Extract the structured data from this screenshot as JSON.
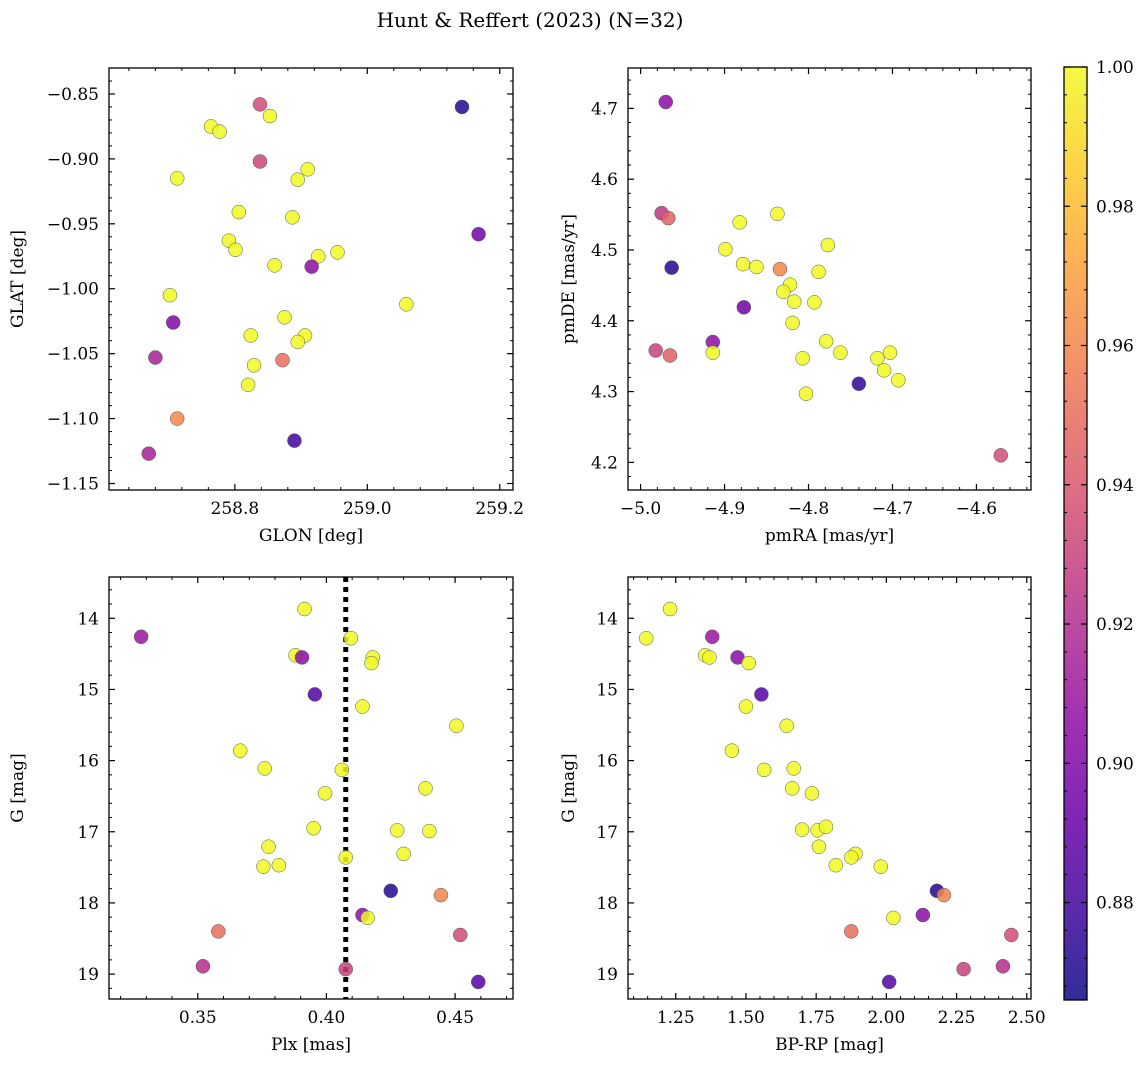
{
  "figure": {
    "title": "Hunt & Reffert (2023) (N=32)"
  },
  "colorbar": {
    "range": [
      0.866,
      1.0
    ],
    "ticks": [
      0.88,
      0.9,
      0.92,
      0.94,
      0.96,
      0.98,
      1.0
    ],
    "tick_labels": [
      "0.88",
      "0.90",
      "0.92",
      "0.94",
      "0.96",
      "0.98",
      "1.00"
    ],
    "colormap": "plasma"
  },
  "chart_data": [
    {
      "type": "scatter",
      "xlabel": "GLON [deg]",
      "ylabel": "GLAT [deg]",
      "xlim": [
        258.61,
        259.22
      ],
      "ylim": [
        -1.155,
        -0.83
      ],
      "yinverted": false,
      "xticks": [
        258.8,
        259.0,
        259.2
      ],
      "xtick_labels": [
        "258.8",
        "259.0",
        "259.2"
      ],
      "yticks": [
        -1.15,
        -1.1,
        -1.05,
        -1.0,
        -0.95,
        -0.9,
        -0.85
      ],
      "ytick_labels": [
        "−1.15",
        "−1.10",
        "−1.05",
        "−1.00",
        "−0.95",
        "−0.90",
        "−0.85"
      ],
      "points": [
        {
          "x": 258.838,
          "y": -0.858,
          "c": 0.935
        },
        {
          "x": 259.143,
          "y": -0.86,
          "c": 0.872
        },
        {
          "x": 258.853,
          "y": -0.867,
          "c": 1.0
        },
        {
          "x": 258.764,
          "y": -0.875,
          "c": 1.0
        },
        {
          "x": 258.777,
          "y": -0.879,
          "c": 1.0
        },
        {
          "x": 258.838,
          "y": -0.902,
          "c": 0.932
        },
        {
          "x": 258.91,
          "y": -0.908,
          "c": 1.0
        },
        {
          "x": 258.713,
          "y": -0.915,
          "c": 1.0
        },
        {
          "x": 258.895,
          "y": -0.916,
          "c": 1.0
        },
        {
          "x": 258.806,
          "y": -0.941,
          "c": 1.0
        },
        {
          "x": 258.887,
          "y": -0.945,
          "c": 1.0
        },
        {
          "x": 259.168,
          "y": -0.958,
          "c": 0.895
        },
        {
          "x": 258.791,
          "y": -0.963,
          "c": 1.0
        },
        {
          "x": 258.801,
          "y": -0.97,
          "c": 1.0
        },
        {
          "x": 258.955,
          "y": -0.972,
          "c": 1.0
        },
        {
          "x": 258.926,
          "y": -0.975,
          "c": 1.0
        },
        {
          "x": 258.86,
          "y": -0.982,
          "c": 1.0
        },
        {
          "x": 258.916,
          "y": -0.983,
          "c": 0.905
        },
        {
          "x": 258.702,
          "y": -1.005,
          "c": 1.0
        },
        {
          "x": 259.059,
          "y": -1.012,
          "c": 1.0
        },
        {
          "x": 258.875,
          "y": -1.022,
          "c": 1.0
        },
        {
          "x": 258.707,
          "y": -1.026,
          "c": 0.9
        },
        {
          "x": 258.824,
          "y": -1.036,
          "c": 1.0
        },
        {
          "x": 258.906,
          "y": -1.036,
          "c": 1.0
        },
        {
          "x": 258.895,
          "y": -1.041,
          "c": 1.0
        },
        {
          "x": 258.68,
          "y": -1.053,
          "c": 0.915
        },
        {
          "x": 258.872,
          "y": -1.055,
          "c": 0.95
        },
        {
          "x": 258.829,
          "y": -1.059,
          "c": 1.0
        },
        {
          "x": 258.82,
          "y": -1.074,
          "c": 1.0
        },
        {
          "x": 258.713,
          "y": -1.1,
          "c": 0.96
        },
        {
          "x": 258.89,
          "y": -1.117,
          "c": 0.88
        },
        {
          "x": 258.67,
          "y": -1.127,
          "c": 0.915
        }
      ]
    },
    {
      "type": "scatter",
      "xlabel": "pmRA [mas/yr]",
      "ylabel": "pmDE [mas/yr]",
      "xlim": [
        -5.015,
        -4.535
      ],
      "ylim": [
        4.161,
        4.757
      ],
      "yinverted": false,
      "xticks": [
        -5.0,
        -4.9,
        -4.8,
        -4.7,
        -4.6
      ],
      "xtick_labels": [
        "−5.0",
        "−4.9",
        "−4.8",
        "−4.7",
        "−4.6"
      ],
      "yticks": [
        4.2,
        4.3,
        4.4,
        4.5,
        4.6,
        4.7
      ],
      "ytick_labels": [
        "4.2",
        "4.3",
        "4.4",
        "4.5",
        "4.6",
        "4.7"
      ],
      "points": [
        {
          "x": -4.97,
          "y": 4.709,
          "c": 0.905
        },
        {
          "x": -4.975,
          "y": 4.552,
          "c": 0.925
        },
        {
          "x": -4.967,
          "y": 4.545,
          "c": 0.945
        },
        {
          "x": -4.837,
          "y": 4.551,
          "c": 1.0
        },
        {
          "x": -4.882,
          "y": 4.539,
          "c": 1.0
        },
        {
          "x": -4.777,
          "y": 4.507,
          "c": 1.0
        },
        {
          "x": -4.899,
          "y": 4.501,
          "c": 1.0
        },
        {
          "x": -4.878,
          "y": 4.48,
          "c": 1.0
        },
        {
          "x": -4.862,
          "y": 4.476,
          "c": 1.0
        },
        {
          "x": -4.963,
          "y": 4.475,
          "c": 0.872
        },
        {
          "x": -4.834,
          "y": 4.473,
          "c": 0.96
        },
        {
          "x": -4.788,
          "y": 4.469,
          "c": 1.0
        },
        {
          "x": -4.822,
          "y": 4.451,
          "c": 1.0
        },
        {
          "x": -4.83,
          "y": 4.441,
          "c": 1.0
        },
        {
          "x": -4.817,
          "y": 4.427,
          "c": 1.0
        },
        {
          "x": -4.793,
          "y": 4.426,
          "c": 1.0
        },
        {
          "x": -4.877,
          "y": 4.419,
          "c": 0.895
        },
        {
          "x": -4.819,
          "y": 4.397,
          "c": 1.0
        },
        {
          "x": -4.779,
          "y": 4.371,
          "c": 1.0
        },
        {
          "x": -4.914,
          "y": 4.37,
          "c": 0.905
        },
        {
          "x": -4.982,
          "y": 4.358,
          "c": 0.93
        },
        {
          "x": -4.762,
          "y": 4.355,
          "c": 1.0
        },
        {
          "x": -4.703,
          "y": 4.355,
          "c": 1.0
        },
        {
          "x": -4.914,
          "y": 4.355,
          "c": 1.0
        },
        {
          "x": -4.965,
          "y": 4.351,
          "c": 0.945
        },
        {
          "x": -4.807,
          "y": 4.347,
          "c": 1.0
        },
        {
          "x": -4.718,
          "y": 4.347,
          "c": 1.0
        },
        {
          "x": -4.71,
          "y": 4.33,
          "c": 1.0
        },
        {
          "x": -4.693,
          "y": 4.316,
          "c": 1.0
        },
        {
          "x": -4.74,
          "y": 4.311,
          "c": 0.875
        },
        {
          "x": -4.803,
          "y": 4.297,
          "c": 1.0
        },
        {
          "x": -4.571,
          "y": 4.21,
          "c": 0.935
        }
      ]
    },
    {
      "type": "scatter",
      "xlabel": "Plx [mas]",
      "ylabel": "G [mag]",
      "xlim": [
        0.3155,
        0.4725
      ],
      "ylim": [
        19.35,
        13.42
      ],
      "yinverted": true,
      "xticks": [
        0.35,
        0.4,
        0.45
      ],
      "xtick_labels": [
        "0.35",
        "0.40",
        "0.45"
      ],
      "yticks": [
        14,
        15,
        16,
        17,
        18,
        19
      ],
      "ytick_labels": [
        "14",
        "15",
        "16",
        "17",
        "18",
        "19"
      ],
      "vline": {
        "x": 0.4075,
        "style": "dotted"
      },
      "points": [
        {
          "x": 0.3915,
          "y": 13.87,
          "c": 1.0
        },
        {
          "x": 0.328,
          "y": 14.26,
          "c": 0.91
        },
        {
          "x": 0.4095,
          "y": 14.28,
          "c": 1.0
        },
        {
          "x": 0.388,
          "y": 14.52,
          "c": 1.0
        },
        {
          "x": 0.3905,
          "y": 14.55,
          "c": 0.905
        },
        {
          "x": 0.418,
          "y": 14.55,
          "c": 1.0
        },
        {
          "x": 0.4175,
          "y": 14.63,
          "c": 1.0
        },
        {
          "x": 0.3955,
          "y": 15.07,
          "c": 0.885
        },
        {
          "x": 0.414,
          "y": 15.24,
          "c": 1.0
        },
        {
          "x": 0.4505,
          "y": 15.51,
          "c": 1.0
        },
        {
          "x": 0.3665,
          "y": 15.86,
          "c": 1.0
        },
        {
          "x": 0.376,
          "y": 16.11,
          "c": 1.0
        },
        {
          "x": 0.406,
          "y": 16.13,
          "c": 1.0
        },
        {
          "x": 0.3995,
          "y": 16.46,
          "c": 1.0
        },
        {
          "x": 0.4385,
          "y": 16.39,
          "c": 1.0
        },
        {
          "x": 0.395,
          "y": 16.95,
          "c": 1.0
        },
        {
          "x": 0.4275,
          "y": 16.98,
          "c": 1.0
        },
        {
          "x": 0.44,
          "y": 16.99,
          "c": 1.0
        },
        {
          "x": 0.3775,
          "y": 17.21,
          "c": 1.0
        },
        {
          "x": 0.43,
          "y": 17.31,
          "c": 1.0
        },
        {
          "x": 0.4075,
          "y": 17.36,
          "c": 1.0
        },
        {
          "x": 0.3755,
          "y": 17.49,
          "c": 1.0
        },
        {
          "x": 0.3815,
          "y": 17.47,
          "c": 1.0
        },
        {
          "x": 0.425,
          "y": 17.83,
          "c": 0.872
        },
        {
          "x": 0.4445,
          "y": 17.89,
          "c": 0.96
        },
        {
          "x": 0.414,
          "y": 18.17,
          "c": 0.905
        },
        {
          "x": 0.416,
          "y": 18.21,
          "c": 1.0
        },
        {
          "x": 0.358,
          "y": 18.4,
          "c": 0.95
        },
        {
          "x": 0.452,
          "y": 18.45,
          "c": 0.935
        },
        {
          "x": 0.352,
          "y": 18.89,
          "c": 0.92
        },
        {
          "x": 0.4075,
          "y": 18.93,
          "c": 0.93
        },
        {
          "x": 0.459,
          "y": 19.11,
          "c": 0.885
        }
      ]
    },
    {
      "type": "scatter",
      "xlabel": "BP-RP [mag]",
      "ylabel": "G [mag]",
      "xlim": [
        1.08,
        2.515
      ],
      "ylim": [
        19.35,
        13.42
      ],
      "yinverted": true,
      "xticks": [
        1.25,
        1.5,
        1.75,
        2.0,
        2.25,
        2.5
      ],
      "xtick_labels": [
        "1.25",
        "1.50",
        "1.75",
        "2.00",
        "2.25",
        "2.50"
      ],
      "yticks": [
        14,
        15,
        16,
        17,
        18,
        19
      ],
      "ytick_labels": [
        "14",
        "15",
        "16",
        "17",
        "18",
        "19"
      ],
      "points": [
        {
          "x": 1.23,
          "y": 13.87,
          "c": 1.0
        },
        {
          "x": 1.145,
          "y": 14.28,
          "c": 1.0
        },
        {
          "x": 1.38,
          "y": 14.26,
          "c": 0.91
        },
        {
          "x": 1.355,
          "y": 14.52,
          "c": 1.0
        },
        {
          "x": 1.37,
          "y": 14.55,
          "c": 1.0
        },
        {
          "x": 1.47,
          "y": 14.55,
          "c": 0.905
        },
        {
          "x": 1.51,
          "y": 14.63,
          "c": 1.0
        },
        {
          "x": 1.555,
          "y": 15.07,
          "c": 0.885
        },
        {
          "x": 1.5,
          "y": 15.24,
          "c": 1.0
        },
        {
          "x": 1.645,
          "y": 15.51,
          "c": 1.0
        },
        {
          "x": 1.45,
          "y": 15.86,
          "c": 1.0
        },
        {
          "x": 1.565,
          "y": 16.13,
          "c": 1.0
        },
        {
          "x": 1.67,
          "y": 16.11,
          "c": 1.0
        },
        {
          "x": 1.665,
          "y": 16.39,
          "c": 1.0
        },
        {
          "x": 1.735,
          "y": 16.46,
          "c": 1.0
        },
        {
          "x": 1.7,
          "y": 16.97,
          "c": 1.0
        },
        {
          "x": 1.755,
          "y": 16.98,
          "c": 1.0
        },
        {
          "x": 1.785,
          "y": 16.93,
          "c": 1.0
        },
        {
          "x": 1.76,
          "y": 17.21,
          "c": 1.0
        },
        {
          "x": 1.89,
          "y": 17.31,
          "c": 1.0
        },
        {
          "x": 1.875,
          "y": 17.36,
          "c": 1.0
        },
        {
          "x": 1.82,
          "y": 17.47,
          "c": 1.0
        },
        {
          "x": 1.98,
          "y": 17.49,
          "c": 1.0
        },
        {
          "x": 2.18,
          "y": 17.83,
          "c": 0.872
        },
        {
          "x": 2.205,
          "y": 17.89,
          "c": 0.96
        },
        {
          "x": 2.13,
          "y": 18.17,
          "c": 0.905
        },
        {
          "x": 2.025,
          "y": 18.21,
          "c": 1.0
        },
        {
          "x": 1.875,
          "y": 18.4,
          "c": 0.95
        },
        {
          "x": 2.445,
          "y": 18.45,
          "c": 0.935
        },
        {
          "x": 2.415,
          "y": 18.89,
          "c": 0.92
        },
        {
          "x": 2.275,
          "y": 18.93,
          "c": 0.93
        },
        {
          "x": 2.01,
          "y": 19.11,
          "c": 0.885
        }
      ]
    }
  ]
}
